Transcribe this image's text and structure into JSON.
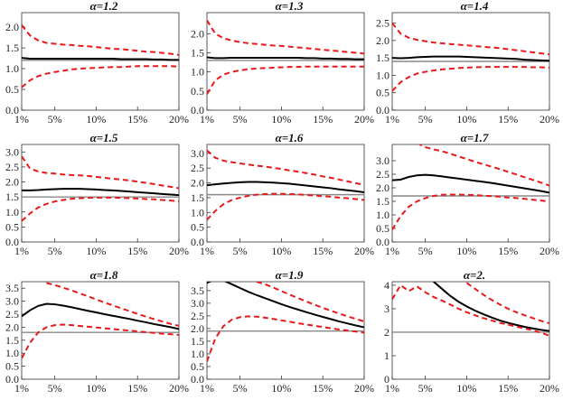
{
  "chart_data": [
    {
      "type": "line",
      "title": "α=1.2",
      "x_ticks": [
        "1%",
        "5%",
        "10%",
        "15%",
        "20%"
      ],
      "x": [
        1,
        2,
        3,
        4,
        5,
        6,
        7,
        8,
        9,
        10,
        11,
        12,
        13,
        14,
        15,
        16,
        17,
        18,
        19,
        20
      ],
      "xlim": [
        1,
        20
      ],
      "y_ticks": [
        "0.0",
        "0.5",
        "1.0",
        "1.5",
        "2.0"
      ],
      "ylim": [
        0,
        2.35
      ],
      "reference": 1.2,
      "series": [
        {
          "role": "estimate",
          "values": [
            1.26,
            1.24,
            1.24,
            1.24,
            1.24,
            1.24,
            1.24,
            1.24,
            1.24,
            1.24,
            1.24,
            1.24,
            1.23,
            1.23,
            1.23,
            1.23,
            1.22,
            1.22,
            1.21,
            1.21
          ]
        },
        {
          "role": "upper",
          "values": [
            2.05,
            1.8,
            1.68,
            1.62,
            1.6,
            1.58,
            1.57,
            1.55,
            1.54,
            1.52,
            1.5,
            1.48,
            1.47,
            1.45,
            1.43,
            1.41,
            1.4,
            1.38,
            1.36,
            1.33
          ]
        },
        {
          "role": "lower",
          "values": [
            0.55,
            0.72,
            0.82,
            0.88,
            0.92,
            0.95,
            0.98,
            1.0,
            1.01,
            1.02,
            1.03,
            1.04,
            1.04,
            1.05,
            1.06,
            1.06,
            1.06,
            1.06,
            1.06,
            1.05
          ]
        }
      ]
    },
    {
      "type": "line",
      "title": "α=1.3",
      "x_ticks": [
        "1%",
        "5%",
        "10%",
        "15%",
        "20%"
      ],
      "x": [
        1,
        2,
        3,
        4,
        5,
        6,
        7,
        8,
        9,
        10,
        11,
        12,
        13,
        14,
        15,
        16,
        17,
        18,
        19,
        20
      ],
      "xlim": [
        1,
        20
      ],
      "y_ticks": [
        "0.0",
        "0.5",
        "1.0",
        "1.5",
        "2.0"
      ],
      "ylim": [
        0,
        2.55
      ],
      "reference": 1.3,
      "series": [
        {
          "role": "estimate",
          "values": [
            1.38,
            1.36,
            1.36,
            1.37,
            1.37,
            1.37,
            1.37,
            1.37,
            1.37,
            1.37,
            1.37,
            1.37,
            1.36,
            1.36,
            1.35,
            1.35,
            1.34,
            1.34,
            1.33,
            1.33
          ]
        },
        {
          "role": "upper",
          "values": [
            2.35,
            2.0,
            1.88,
            1.82,
            1.78,
            1.75,
            1.73,
            1.71,
            1.69,
            1.68,
            1.66,
            1.64,
            1.62,
            1.6,
            1.58,
            1.56,
            1.54,
            1.52,
            1.5,
            1.48
          ]
        },
        {
          "role": "lower",
          "values": [
            0.42,
            0.78,
            0.93,
            1.0,
            1.04,
            1.07,
            1.09,
            1.1,
            1.11,
            1.12,
            1.13,
            1.13,
            1.14,
            1.14,
            1.14,
            1.14,
            1.14,
            1.14,
            1.14,
            1.14
          ]
        }
      ]
    },
    {
      "type": "line",
      "title": "α=1.4",
      "x_ticks": [
        "1%",
        "5%",
        "10%",
        "15%",
        "20%"
      ],
      "x": [
        1,
        2,
        3,
        4,
        5,
        6,
        7,
        8,
        9,
        10,
        11,
        12,
        13,
        14,
        15,
        16,
        17,
        18,
        19,
        20
      ],
      "xlim": [
        1,
        20
      ],
      "y_ticks": [
        "0.0",
        "0.5",
        "1.0",
        "1.5",
        "2.0",
        "2.5"
      ],
      "ylim": [
        0,
        2.8
      ],
      "reference": 1.4,
      "series": [
        {
          "role": "estimate",
          "values": [
            1.5,
            1.49,
            1.5,
            1.52,
            1.53,
            1.54,
            1.54,
            1.54,
            1.54,
            1.53,
            1.52,
            1.51,
            1.5,
            1.49,
            1.48,
            1.47,
            1.45,
            1.44,
            1.43,
            1.42
          ]
        },
        {
          "role": "upper",
          "values": [
            2.5,
            2.2,
            2.08,
            2.02,
            1.98,
            1.94,
            1.92,
            1.9,
            1.88,
            1.86,
            1.84,
            1.82,
            1.8,
            1.78,
            1.75,
            1.72,
            1.69,
            1.66,
            1.63,
            1.6
          ]
        },
        {
          "role": "lower",
          "values": [
            0.55,
            0.8,
            0.95,
            1.05,
            1.1,
            1.14,
            1.17,
            1.19,
            1.21,
            1.22,
            1.23,
            1.24,
            1.24,
            1.24,
            1.24,
            1.24,
            1.24,
            1.23,
            1.23,
            1.22
          ]
        }
      ]
    },
    {
      "type": "line",
      "title": "α=1.5",
      "x_ticks": [
        "1%",
        "5%",
        "10%",
        "15%",
        "20%"
      ],
      "x": [
        1,
        2,
        3,
        4,
        5,
        6,
        7,
        8,
        9,
        10,
        11,
        12,
        13,
        14,
        15,
        16,
        17,
        18,
        19,
        20
      ],
      "xlim": [
        1,
        20
      ],
      "y_ticks": [
        "0.0",
        "0.5",
        "1.0",
        "1.5",
        "2.0",
        "2.5",
        "3.0"
      ],
      "ylim": [
        0,
        3.25
      ],
      "reference": 1.5,
      "series": [
        {
          "role": "estimate",
          "values": [
            1.72,
            1.72,
            1.73,
            1.75,
            1.76,
            1.77,
            1.77,
            1.77,
            1.76,
            1.75,
            1.73,
            1.72,
            1.7,
            1.68,
            1.66,
            1.64,
            1.62,
            1.6,
            1.58,
            1.56
          ]
        },
        {
          "role": "upper",
          "values": [
            2.85,
            2.45,
            2.35,
            2.3,
            2.28,
            2.25,
            2.23,
            2.22,
            2.2,
            2.17,
            2.14,
            2.11,
            2.08,
            2.05,
            2.01,
            1.97,
            1.93,
            1.88,
            1.84,
            1.79
          ]
        },
        {
          "role": "lower",
          "values": [
            0.7,
            0.95,
            1.15,
            1.27,
            1.35,
            1.4,
            1.44,
            1.46,
            1.47,
            1.48,
            1.48,
            1.48,
            1.47,
            1.46,
            1.45,
            1.43,
            1.42,
            1.4,
            1.38,
            1.36
          ]
        }
      ]
    },
    {
      "type": "line",
      "title": "α=1.6",
      "x_ticks": [
        "1%",
        "5%",
        "10%",
        "15%",
        "20%"
      ],
      "x": [
        1,
        2,
        3,
        4,
        5,
        6,
        7,
        8,
        9,
        10,
        11,
        12,
        13,
        14,
        15,
        16,
        17,
        18,
        19,
        20
      ],
      "xlim": [
        1,
        20
      ],
      "y_ticks": [
        "0.0",
        "0.5",
        "1.0",
        "1.5",
        "2.0",
        "2.5",
        "3.0"
      ],
      "ylim": [
        0,
        3.3
      ],
      "reference": 1.6,
      "series": [
        {
          "role": "estimate",
          "values": [
            1.92,
            1.95,
            1.98,
            2.0,
            2.02,
            2.03,
            2.03,
            2.02,
            2.01,
            1.99,
            1.97,
            1.94,
            1.91,
            1.88,
            1.85,
            1.82,
            1.78,
            1.75,
            1.72,
            1.68
          ]
        },
        {
          "role": "upper",
          "values": [
            3.1,
            2.85,
            2.75,
            2.7,
            2.66,
            2.62,
            2.58,
            2.55,
            2.51,
            2.47,
            2.42,
            2.38,
            2.33,
            2.28,
            2.22,
            2.17,
            2.11,
            2.05,
            1.99,
            1.93
          ]
        },
        {
          "role": "lower",
          "values": [
            0.75,
            1.05,
            1.28,
            1.42,
            1.5,
            1.56,
            1.6,
            1.62,
            1.63,
            1.63,
            1.62,
            1.61,
            1.59,
            1.57,
            1.55,
            1.53,
            1.5,
            1.48,
            1.45,
            1.42
          ]
        }
      ]
    },
    {
      "type": "line",
      "title": "α=1.7",
      "x_ticks": [
        "1%",
        "5%",
        "10%",
        "15%",
        "20%"
      ],
      "x": [
        1,
        2,
        3,
        4,
        5,
        6,
        7,
        8,
        9,
        10,
        11,
        12,
        13,
        14,
        15,
        16,
        17,
        18,
        19,
        20
      ],
      "xlim": [
        1,
        20
      ],
      "y_ticks": [
        "0.0",
        "0.5",
        "1.0",
        "1.5",
        "2.0",
        "2.5",
        "3.0"
      ],
      "ylim": [
        0,
        3.6
      ],
      "reference": 1.7,
      "series": [
        {
          "role": "estimate",
          "values": [
            2.28,
            2.3,
            2.4,
            2.46,
            2.48,
            2.46,
            2.42,
            2.38,
            2.34,
            2.3,
            2.26,
            2.22,
            2.18,
            2.13,
            2.08,
            2.03,
            1.98,
            1.93,
            1.88,
            1.82
          ]
        },
        {
          "role": "upper",
          "values": [
            null,
            null,
            null,
            3.65,
            3.5,
            3.42,
            3.35,
            3.26,
            3.16,
            3.06,
            2.96,
            2.87,
            2.78,
            2.69,
            2.59,
            2.49,
            2.39,
            2.29,
            2.19,
            2.08
          ]
        },
        {
          "role": "lower",
          "values": [
            0.45,
            0.95,
            1.3,
            1.5,
            1.62,
            1.7,
            1.74,
            1.75,
            1.75,
            1.74,
            1.73,
            1.71,
            1.69,
            1.67,
            1.64,
            1.62,
            1.59,
            1.56,
            1.53,
            1.5
          ]
        }
      ]
    },
    {
      "type": "line",
      "title": "α=1.8",
      "x_ticks": [
        "1%",
        "5%",
        "10%",
        "15%",
        "20%"
      ],
      "x": [
        1,
        2,
        3,
        4,
        5,
        6,
        7,
        8,
        9,
        10,
        11,
        12,
        13,
        14,
        15,
        16,
        17,
        18,
        19,
        20
      ],
      "xlim": [
        1,
        20
      ],
      "y_ticks": [
        "0.0",
        "0.5",
        "1.0",
        "1.5",
        "2.0",
        "2.5",
        "3.0",
        "3.5"
      ],
      "ylim": [
        0,
        3.75
      ],
      "reference": 1.8,
      "series": [
        {
          "role": "estimate",
          "values": [
            2.42,
            2.65,
            2.82,
            2.9,
            2.88,
            2.83,
            2.77,
            2.7,
            2.63,
            2.57,
            2.5,
            2.44,
            2.38,
            2.32,
            2.25,
            2.19,
            2.12,
            2.06,
            2.0,
            1.93
          ]
        },
        {
          "role": "upper",
          "values": [
            null,
            null,
            null,
            3.7,
            3.62,
            3.52,
            3.42,
            3.3,
            3.19,
            3.07,
            2.95,
            2.84,
            2.73,
            2.62,
            2.51,
            2.41,
            2.31,
            2.22,
            2.13,
            2.05
          ]
        },
        {
          "role": "lower",
          "values": [
            0.8,
            1.4,
            1.8,
            2.0,
            2.08,
            2.1,
            2.08,
            2.05,
            2.02,
            1.99,
            1.96,
            1.93,
            1.9,
            1.87,
            1.84,
            1.81,
            1.78,
            1.75,
            1.73,
            1.7
          ]
        }
      ]
    },
    {
      "type": "line",
      "title": "α=1.9",
      "x_ticks": [
        "1%",
        "5%",
        "10%",
        "15%",
        "20%"
      ],
      "x": [
        1,
        2,
        3,
        4,
        5,
        6,
        7,
        8,
        9,
        10,
        11,
        12,
        13,
        14,
        15,
        16,
        17,
        18,
        19,
        20
      ],
      "xlim": [
        1,
        20
      ],
      "y_ticks": [
        "0.0",
        "0.5",
        "1.0",
        "1.5",
        "2.0",
        "2.5",
        "3.0",
        "3.5"
      ],
      "ylim": [
        0,
        3.85
      ],
      "reference": 1.9,
      "series": [
        {
          "role": "estimate",
          "values": [
            3.8,
            3.95,
            3.9,
            3.75,
            3.6,
            3.45,
            3.32,
            3.2,
            3.08,
            2.96,
            2.85,
            2.75,
            2.65,
            2.55,
            2.46,
            2.37,
            2.28,
            2.2,
            2.12,
            2.05
          ]
        },
        {
          "role": "upper",
          "values": [
            null,
            null,
            null,
            null,
            null,
            null,
            3.85,
            3.75,
            3.62,
            3.48,
            3.34,
            3.2,
            3.07,
            2.94,
            2.82,
            2.7,
            2.59,
            2.48,
            2.38,
            2.28
          ]
        },
        {
          "role": "lower",
          "values": [
            0.7,
            1.6,
            2.1,
            2.35,
            2.45,
            2.48,
            2.47,
            2.43,
            2.38,
            2.32,
            2.27,
            2.21,
            2.16,
            2.11,
            2.06,
            2.01,
            1.96,
            1.92,
            1.88,
            1.84
          ]
        }
      ]
    },
    {
      "type": "line",
      "title": "α=2.",
      "x_ticks": [
        "1%",
        "5%",
        "10%",
        "15%",
        "20%"
      ],
      "x": [
        1,
        2,
        3,
        4,
        5,
        6,
        7,
        8,
        9,
        10,
        11,
        12,
        13,
        14,
        15,
        16,
        17,
        18,
        19,
        20
      ],
      "xlim": [
        1,
        20
      ],
      "y_ticks": [
        "0",
        "1",
        "2",
        "3",
        "4"
      ],
      "ylim": [
        0,
        4.15
      ],
      "reference": 2.0,
      "series": [
        {
          "role": "estimate",
          "values": [
            null,
            null,
            null,
            null,
            null,
            4.15,
            3.85,
            3.55,
            3.3,
            3.1,
            2.92,
            2.77,
            2.63,
            2.5,
            2.4,
            2.31,
            2.23,
            2.16,
            2.1,
            2.05
          ]
        },
        {
          "role": "upper",
          "values": [
            null,
            null,
            null,
            null,
            null,
            null,
            null,
            null,
            null,
            4.1,
            3.85,
            3.6,
            3.38,
            3.18,
            3.0,
            2.85,
            2.72,
            2.6,
            2.48,
            2.38
          ]
        },
        {
          "role": "lower",
          "values": [
            3.4,
            4.0,
            3.75,
            3.95,
            3.7,
            3.5,
            3.35,
            3.18,
            3.0,
            2.85,
            2.72,
            2.6,
            2.5,
            2.4,
            2.32,
            2.24,
            2.16,
            2.08,
            1.98,
            1.85
          ]
        }
      ]
    }
  ]
}
